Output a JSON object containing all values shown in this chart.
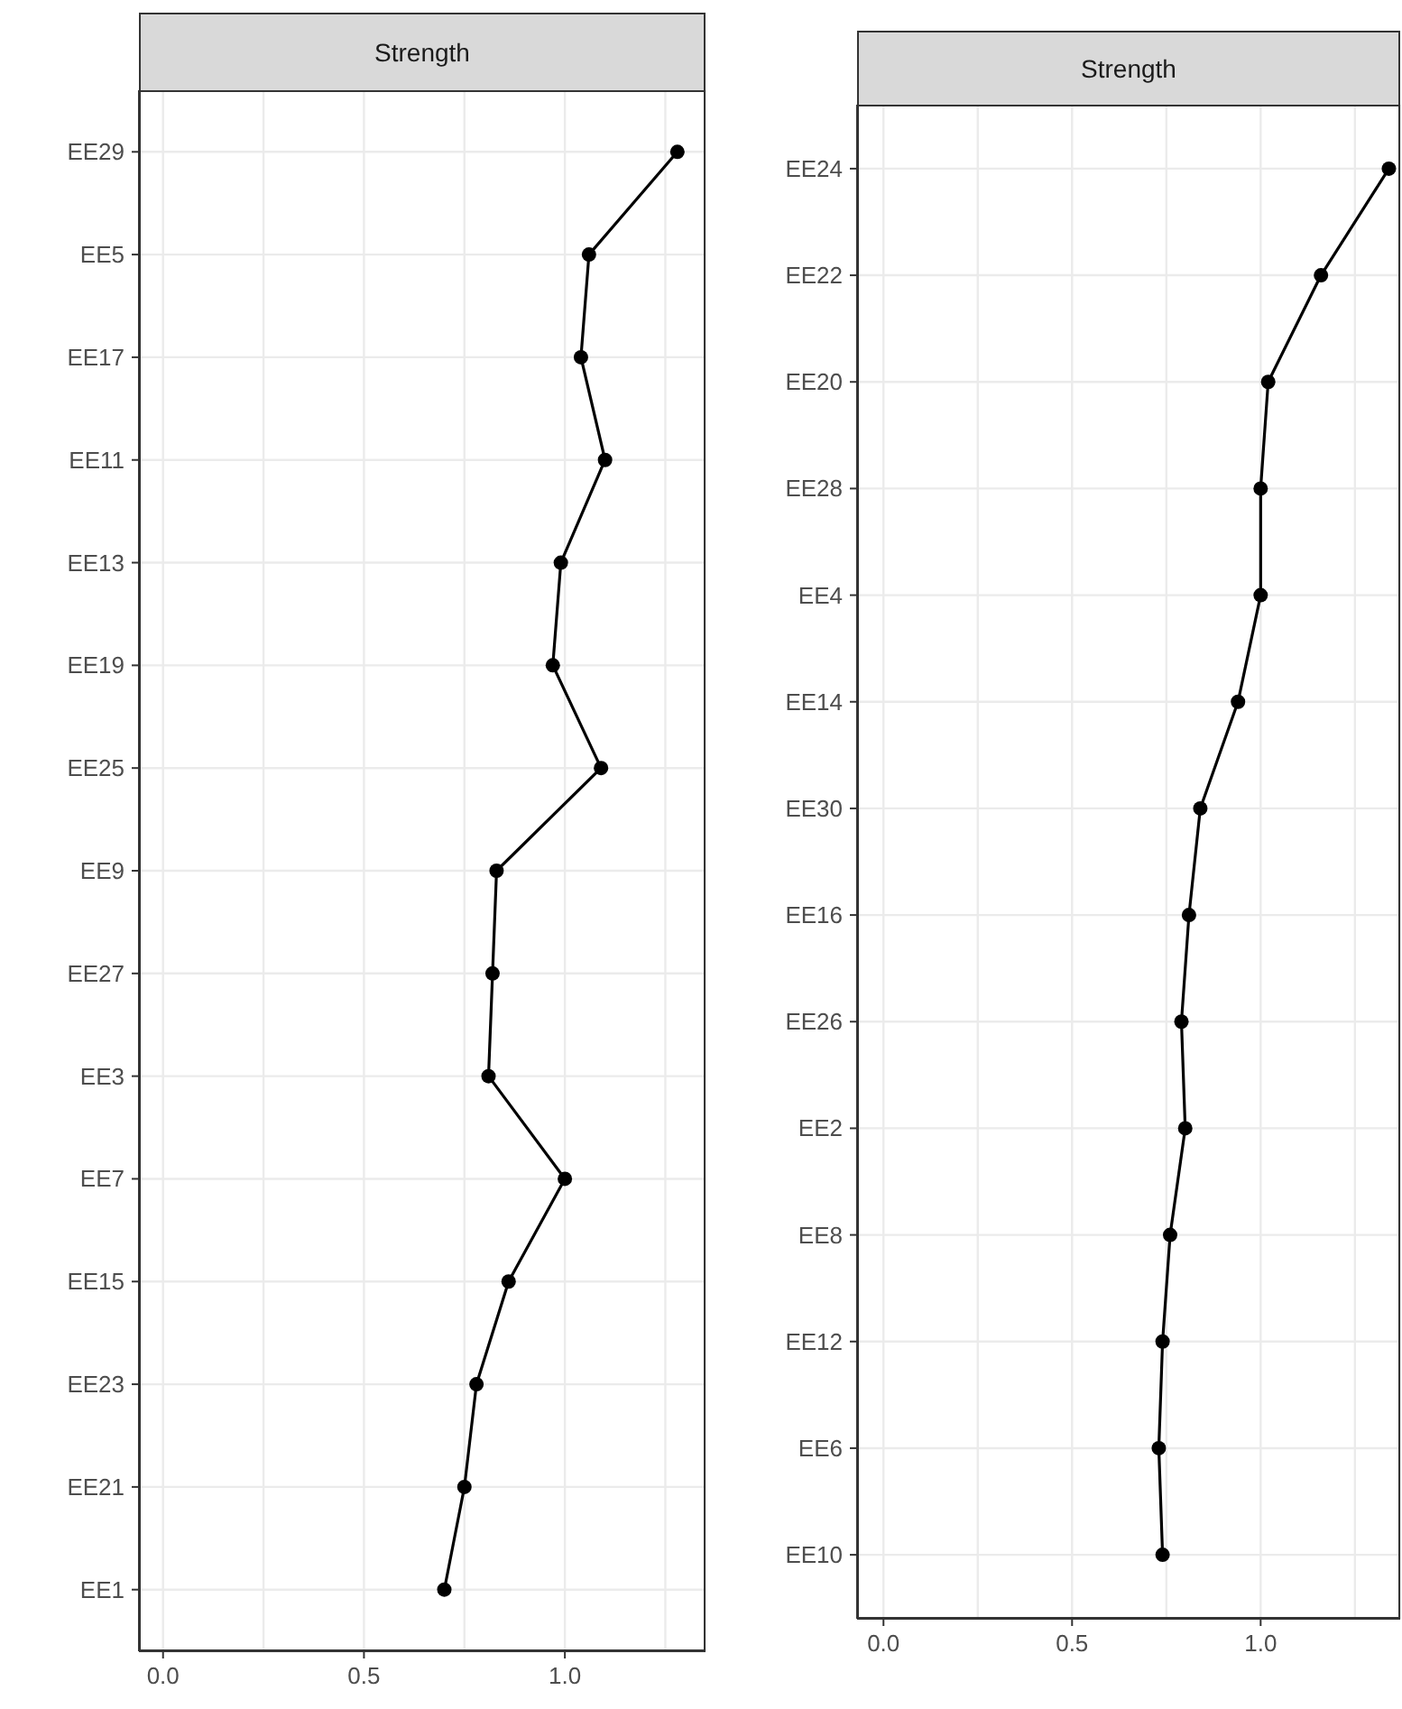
{
  "chart_data": [
    {
      "type": "line",
      "title": "Strength",
      "orientation": "horizontal",
      "categories": [
        "EE29",
        "EE5",
        "EE17",
        "EE11",
        "EE13",
        "EE19",
        "EE25",
        "EE9",
        "EE27",
        "EE3",
        "EE7",
        "EE15",
        "EE23",
        "EE21",
        "EE1"
      ],
      "values": [
        1.28,
        1.06,
        1.04,
        1.1,
        0.99,
        0.97,
        1.09,
        0.83,
        0.82,
        0.81,
        1.0,
        0.86,
        0.78,
        0.75,
        0.7
      ],
      "color": "#000000",
      "xlim": [
        -0.06,
        1.35
      ],
      "xticks": [
        {
          "value": 0,
          "label": "0.0"
        },
        {
          "value": 0.25,
          "label": null
        },
        0.5,
        {
          "value": 0.75,
          "label": null
        },
        {
          "value": 1,
          "label": "1.0"
        },
        {
          "value": 1.25,
          "label": null
        }
      ],
      "grid": true,
      "marker": "circle"
    },
    {
      "type": "line",
      "title": "Strength",
      "orientation": "horizontal",
      "categories": [
        "EE24",
        "EE22",
        "EE20",
        "EE28",
        "EE4",
        "EE14",
        "EE30",
        "EE16",
        "EE26",
        "EE2",
        "EE8",
        "EE12",
        "EE6",
        "EE10"
      ],
      "values": [
        1.34,
        1.16,
        1.02,
        1.0,
        1.0,
        0.94,
        0.84,
        0.81,
        0.79,
        0.8,
        0.76,
        0.74,
        0.73,
        0.74
      ],
      "color": "#000000",
      "xlim": [
        -0.07,
        1.37
      ],
      "xticks": [
        {
          "value": 0,
          "label": "0.0"
        },
        {
          "value": 0.25,
          "label": null
        },
        0.5,
        {
          "value": 0.75,
          "label": null
        },
        {
          "value": 1,
          "label": "1.0"
        },
        {
          "value": 1.25,
          "label": null
        }
      ],
      "grid": true,
      "marker": "circle"
    }
  ]
}
